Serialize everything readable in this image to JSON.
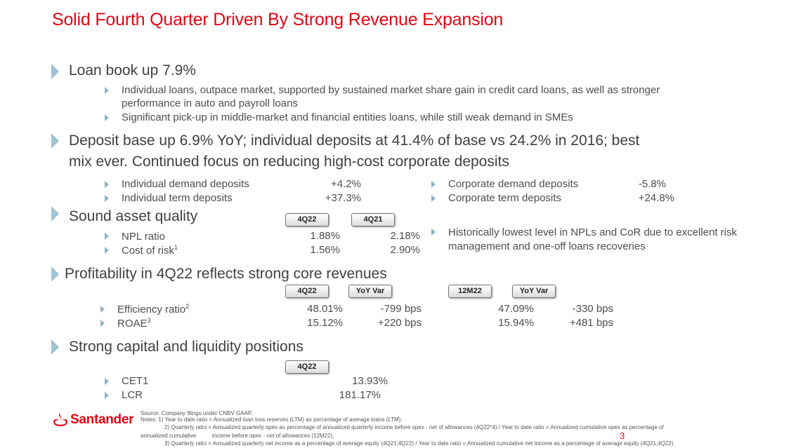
{
  "title": "Solid Fourth Quarter Driven By Strong Revenue Expansion",
  "loan": {
    "heading": "Loan book up 7.9%",
    "b1_line1": "Individual loans, outpace market, supported by sustained market share gain in credit card loans, as well as stronger",
    "b1_line2": "performance in auto and payroll loans",
    "b2": "Significant pick-up in middle-market and financial entities loans, while still weak demand in SMEs"
  },
  "deposit": {
    "heading_line1": "Deposit base up 6.9% YoY; individual deposits at 41.4% of base vs 24.2% in 2016; best",
    "heading_line2": "mix ever. Continued focus on reducing high-cost corporate deposits",
    "rows": [
      {
        "label": "Individual demand deposits",
        "value": "+4.2%",
        "label2": "Corporate demand deposits",
        "value2": "-5.8%"
      },
      {
        "label": "Individual term deposits",
        "value": "+37.3%",
        "label2": "Corporate term deposits",
        "value2": "+24.8%"
      }
    ]
  },
  "asset": {
    "heading": "Sound asset quality",
    "col1": "4Q22",
    "col2": "4Q21",
    "rows": [
      {
        "label": "NPL ratio",
        "sup": "",
        "v1": "1.88%",
        "v2": "2.18%"
      },
      {
        "label": "Cost of risk",
        "sup": "1",
        "v1": "1.56%",
        "v2": "2.90%"
      }
    ],
    "note_line1": "Historically lowest level in NPLs and CoR due to excellent risk",
    "note_line2": "management and one-off loans recoveries"
  },
  "profit": {
    "heading": "Profitability in 4Q22 reflects strong core revenues",
    "cols": [
      "4Q22",
      "YoY Var",
      "12M22",
      "YoY Var"
    ],
    "rows": [
      {
        "label": "Efficiency ratio",
        "sup": "2",
        "v1": "48.01%",
        "v2": "-799 bps",
        "v3": "47.09%",
        "v4": "-330 bps"
      },
      {
        "label": "ROAE",
        "sup": "3",
        "v1": "15.12%",
        "v2": "+220 bps",
        "v3": "15.94%",
        "v4": "+481 bps"
      }
    ]
  },
  "capital": {
    "heading": "Strong capital and liquidity positions",
    "col": "4Q22",
    "rows": [
      {
        "label": "CET1",
        "value": "13.93%"
      },
      {
        "label": "LCR",
        "value": "181.17%"
      }
    ]
  },
  "footer": {
    "logo": "Santander",
    "source": "Source: Company filings under CNBV GAAP.",
    "note1": "Notes: 1) Year to date ratio = Annualized loan loss reserves (LTM) as percentage of average loans (LTM).",
    "note2a": "2) Quarterly ratio = Annualized quarterly opex as percentage of annualized quarterly income before opex - net of allowances (4Q22*4) / Year to date ratio = Annualized cumulative opex as percentage of",
    "note2b_left": "annualized cumulative",
    "note2b_right": "income before opex - net of allowances (12M22).",
    "note3": "3) Quarterly ratio = Annualized quarterly net income as a percentage of average equity (4Q21;4Q22) / Year to date ratio = Annualized cumulative net income as a percentage of average equity (4Q21;4Q22).",
    "page": "3"
  },
  "colors": {
    "brand": "#e30613",
    "bullet": "#9dc3d8",
    "text": "#404040"
  }
}
